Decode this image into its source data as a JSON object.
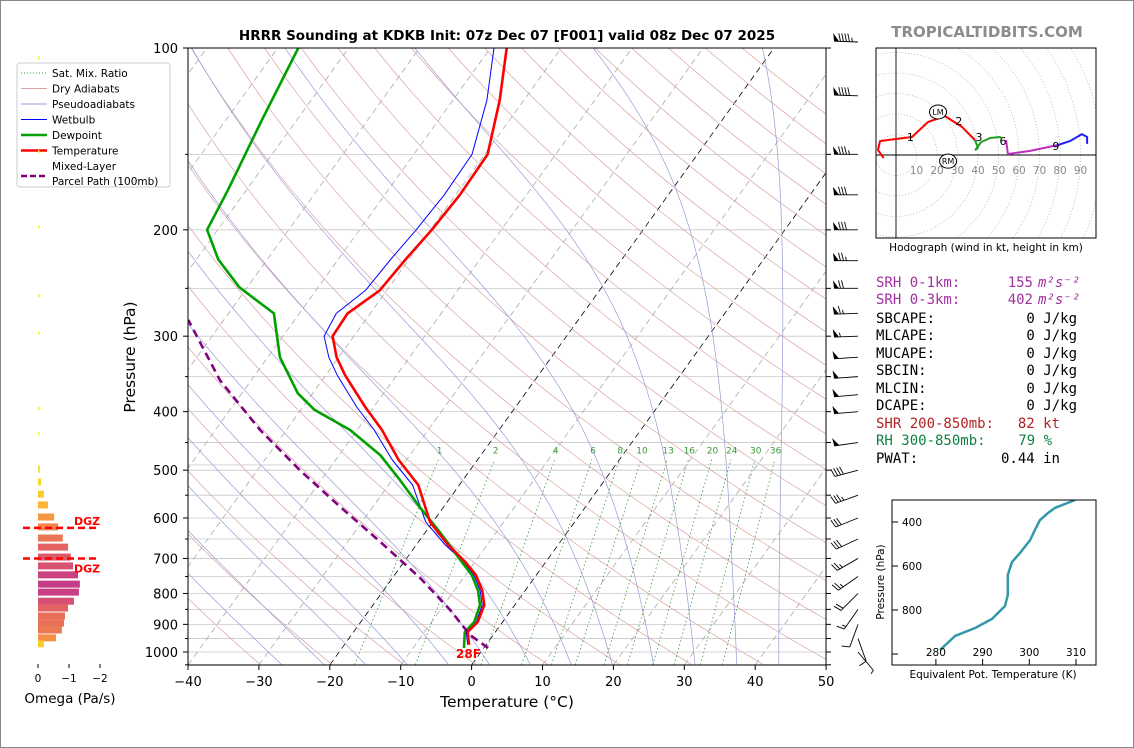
{
  "title": "HRRR Sounding at KDKB Init: 07z Dec 07 [F001] valid 08z Dec 07 2025",
  "watermark": "TROPICALTIDBITS.COM",
  "colors": {
    "temperature": "#ff0000",
    "dewpoint": "#00a000",
    "wetbulb": "#0000ff",
    "parcel": "#800080",
    "dry_adiabat": "#d9a3a3",
    "moist_adiabat": "#9a9ad8",
    "mixing_ratio": "#3a9a3a",
    "srh": "#a030a0",
    "shear": "#b22222",
    "rh": "#108040"
  },
  "legend": [
    {
      "label": "Sat. Mix. Ratio",
      "style": "mix"
    },
    {
      "label": "Dry Adiabats",
      "style": "dry"
    },
    {
      "label": "Pseudoadiabats",
      "style": "moist"
    },
    {
      "label": "Wetbulb",
      "style": "wet"
    },
    {
      "label": "Dewpoint",
      "style": "dew"
    },
    {
      "label": "Temperature",
      "style": "temp"
    },
    {
      "label": "Mixed-Layer",
      "label2": "Parcel Path (100mb)",
      "style": "parcel"
    }
  ],
  "chart_data": [
    {
      "type": "line",
      "name": "skew-t",
      "xlabel": "Temperature (°C)",
      "ylabel": "Pressure (hPa)",
      "xlim": [
        -40,
        50
      ],
      "ylim": [
        1050,
        100
      ],
      "x_ticks": [
        -40,
        -30,
        -20,
        -10,
        0,
        10,
        20,
        30,
        40,
        50
      ],
      "pressure_ticks": [
        100,
        200,
        300,
        400,
        500,
        600,
        700,
        800,
        900,
        1000
      ],
      "surface_label": "28F",
      "mixing_ratio_labels": [
        1,
        2,
        4,
        6,
        8,
        10,
        13,
        16,
        20,
        24,
        30,
        36
      ],
      "series": [
        {
          "name": "Temperature",
          "points": [
            [
              973,
              -2.4
            ],
            [
              927,
              -3.9
            ],
            [
              892,
              -3.5
            ],
            [
              836,
              -4.3
            ],
            [
              790,
              -6.1
            ],
            [
              746,
              -8.5
            ],
            [
              710,
              -11.3
            ],
            [
              665,
              -15.5
            ],
            [
              609,
              -20.4
            ],
            [
              529,
              -25.8
            ],
            [
              481,
              -31.1
            ],
            [
              429,
              -36.5
            ],
            [
              393,
              -41.2
            ],
            [
              348,
              -47.3
            ],
            [
              325,
              -50.3
            ],
            [
              300,
              -53.0
            ],
            [
              275,
              -53.2
            ],
            [
              252,
              -51.0
            ],
            [
              224,
              -50.5
            ],
            [
              200,
              -49.8
            ],
            [
              175,
              -49.4
            ],
            [
              150,
              -49.6
            ],
            [
              122,
              -53.4
            ],
            [
              100,
              -57.7
            ]
          ]
        },
        {
          "name": "Dewpoint",
          "points": [
            [
              985,
              -2.8
            ],
            [
              927,
              -4.3
            ],
            [
              892,
              -4.0
            ],
            [
              836,
              -4.9
            ],
            [
              790,
              -6.7
            ],
            [
              746,
              -9.1
            ],
            [
              710,
              -11.8
            ],
            [
              633,
              -18.0
            ],
            [
              577,
              -23.2
            ],
            [
              519,
              -28.9
            ],
            [
              472,
              -34.2
            ],
            [
              429,
              -41.0
            ],
            [
              397,
              -48.1
            ],
            [
              373,
              -52.1
            ],
            [
              325,
              -58.3
            ],
            [
              275,
              -63.6
            ],
            [
              249,
              -71.1
            ],
            [
              224,
              -76.9
            ],
            [
              200,
              -81.5
            ],
            [
              172,
              -82.6
            ],
            [
              132,
              -84.9
            ],
            [
              100,
              -87.1
            ]
          ]
        },
        {
          "name": "Wetbulb",
          "points": [
            [
              973,
              -2.6
            ],
            [
              927,
              -4.1
            ],
            [
              892,
              -3.7
            ],
            [
              836,
              -4.6
            ],
            [
              790,
              -6.4
            ],
            [
              746,
              -8.8
            ],
            [
              710,
              -11.5
            ],
            [
              665,
              -15.9
            ],
            [
              609,
              -21.0
            ],
            [
              529,
              -26.6
            ],
            [
              481,
              -32.0
            ],
            [
              429,
              -37.6
            ],
            [
              393,
              -42.4
            ],
            [
              348,
              -48.4
            ],
            [
              325,
              -51.4
            ],
            [
              300,
              -54.2
            ],
            [
              275,
              -54.8
            ],
            [
              252,
              -53.0
            ],
            [
              224,
              -52.6
            ],
            [
              200,
              -52.0
            ],
            [
              175,
              -51.6
            ],
            [
              150,
              -51.8
            ],
            [
              122,
              -55.2
            ],
            [
              100,
              -59.5
            ]
          ]
        },
        {
          "name": "Mixed-Layer Parcel Path (100mb)",
          "points": [
            [
              985,
              0.6
            ],
            [
              937,
              -3.3
            ],
            [
              852,
              -8.6
            ],
            [
              754,
              -16.1
            ],
            [
              657,
              -25.4
            ],
            [
              575,
              -34.6
            ],
            [
              500,
              -44.0
            ],
            [
              429,
              -53.7
            ],
            [
              355,
              -64.4
            ],
            [
              282,
              -75.0
            ]
          ]
        }
      ],
      "wind_barbs": [
        [
          100,
          95,
          272
        ],
        [
          120,
          90,
          272
        ],
        [
          150,
          85,
          270
        ],
        [
          175,
          80,
          270
        ],
        [
          200,
          80,
          270
        ],
        [
          225,
          75,
          270
        ],
        [
          250,
          70,
          270
        ],
        [
          275,
          65,
          268
        ],
        [
          300,
          55,
          268
        ],
        [
          325,
          50,
          266
        ],
        [
          350,
          50,
          266
        ],
        [
          375,
          50,
          265
        ],
        [
          400,
          50,
          265
        ],
        [
          450,
          50,
          262
        ],
        [
          500,
          40,
          255
        ],
        [
          550,
          35,
          250
        ],
        [
          600,
          30,
          248
        ],
        [
          650,
          30,
          245
        ],
        [
          700,
          25,
          240
        ],
        [
          750,
          25,
          235
        ],
        [
          800,
          20,
          225
        ],
        [
          850,
          15,
          215
        ],
        [
          900,
          10,
          200
        ],
        [
          950,
          8,
          160
        ],
        [
          1000,
          5,
          140
        ]
      ]
    },
    {
      "type": "bar",
      "name": "omega",
      "xlabel": "Omega (Pa/s)",
      "x_ticks": [
        "0",
        "−1",
        "−2"
      ],
      "x_tick_values": [
        0,
        -1,
        -2
      ],
      "dgz_label": "DGZ",
      "dgz_pressures": [
        623,
        700
      ],
      "bars": [
        [
          105,
          0.01
        ],
        [
          150,
          0.01
        ],
        [
          200,
          0.01
        ],
        [
          260,
          0.01
        ],
        [
          300,
          0.01
        ],
        [
          400,
          0.01
        ],
        [
          440,
          0.01
        ],
        [
          500,
          -0.06
        ],
        [
          525,
          -0.1
        ],
        [
          550,
          -0.19
        ],
        [
          573,
          -0.32
        ],
        [
          600,
          -0.52
        ],
        [
          623,
          -0.65
        ],
        [
          650,
          -0.8
        ],
        [
          673,
          -0.97
        ],
        [
          699,
          -1.06
        ],
        [
          723,
          -1.13
        ],
        [
          748,
          -1.29
        ],
        [
          775,
          -1.35
        ],
        [
          799,
          -1.32
        ],
        [
          827,
          -1.16
        ],
        [
          849,
          -0.97
        ],
        [
          875,
          -0.87
        ],
        [
          899,
          -0.84
        ],
        [
          923,
          -0.77
        ],
        [
          951,
          -0.58
        ],
        [
          973,
          -0.19
        ]
      ]
    },
    {
      "type": "line",
      "name": "hodograph",
      "caption": "Hodograph (wind in kt, height in km)",
      "ring_labels": [
        10,
        20,
        30,
        40,
        50,
        60,
        70,
        80,
        90
      ],
      "segments": [
        {
          "color": "#ff0000",
          "points": [
            [
              -6,
              -1.5
            ],
            [
              -8.8,
              2.4
            ],
            [
              -7.8,
              6.8
            ],
            [
              0,
              7.8
            ],
            [
              7.8,
              8.8
            ],
            [
              15.6,
              16.1
            ],
            [
              23.9,
              19
            ],
            [
              32.2,
              13.7
            ],
            [
              38.5,
              7.3
            ]
          ]
        },
        {
          "color": "#20a020",
          "points": [
            [
              38.5,
              7.3
            ],
            [
              40,
              3.5
            ],
            [
              38.8,
              2.6
            ],
            [
              41.5,
              6.3
            ],
            [
              45.9,
              8.3
            ],
            [
              50.7,
              8.8
            ],
            [
              51.5,
              8.3
            ]
          ]
        },
        {
          "color": "#c030c0",
          "points": [
            [
              53.7,
              7.3
            ],
            [
              54.6,
              0.5
            ],
            [
              65.4,
              2
            ],
            [
              79,
              4.9
            ]
          ]
        },
        {
          "color": "#2020ff",
          "points": [
            [
              79,
              4.9
            ],
            [
              84.9,
              6.8
            ],
            [
              90.7,
              10.2
            ],
            [
              93.2,
              8.8
            ],
            [
              93.2,
              5.4
            ]
          ]
        }
      ],
      "height_labels": [
        {
          "t": "1",
          "u": 7,
          "v": 8.8
        },
        {
          "t": "2",
          "u": 30.7,
          "v": 16.6
        },
        {
          "t": "3",
          "u": 40.5,
          "v": 8.8
        },
        {
          "t": "6",
          "u": 52.2,
          "v": 6.8
        },
        {
          "t": "9",
          "u": 78,
          "v": 4.4
        }
      ],
      "storm_motion": [
        {
          "t": "LM",
          "u": 20.5,
          "v": 21
        },
        {
          "t": "RM",
          "u": 25.4,
          "v": -3
        }
      ]
    },
    {
      "type": "line",
      "name": "theta-e",
      "xlabel": "Equivalent Pot. Temperature (K)",
      "ylabel": "Pressure (hPa)",
      "x_ticks": [
        280,
        290,
        300,
        310
      ],
      "y_ticks": [
        400,
        600,
        800
      ],
      "xlim": [
        270.6,
        314.3
      ],
      "ylim": [
        1050,
        300
      ],
      "points": [
        [
          982,
          280.9
        ],
        [
          918,
          284.1
        ],
        [
          882,
          288.4
        ],
        [
          841,
          292.0
        ],
        [
          782,
          294.8
        ],
        [
          732,
          295.4
        ],
        [
          641,
          295.4
        ],
        [
          582,
          296.3
        ],
        [
          541,
          298.0
        ],
        [
          482,
          300.2
        ],
        [
          436,
          301.2
        ],
        [
          391,
          302.3
        ],
        [
          359,
          304.0
        ],
        [
          336,
          305.5
        ],
        [
          300,
          309.8
        ]
      ]
    }
  ],
  "stats": [
    {
      "label": "SRH 0-1km:",
      "value": "155",
      "unit": "m²s⁻²",
      "color": "srh"
    },
    {
      "label": "SRH 0-3km:",
      "value": "402",
      "unit": "m²s⁻²",
      "color": "srh"
    },
    {
      "label": "SBCAPE:",
      "value": "0 J/kg",
      "color": "black"
    },
    {
      "label": "MLCAPE:",
      "value": "0 J/kg",
      "color": "black"
    },
    {
      "label": "MUCAPE:",
      "value": "0 J/kg",
      "color": "black"
    },
    {
      "label": "SBCIN:",
      "value": "0 J/kg",
      "color": "black"
    },
    {
      "label": "MLCIN:",
      "value": "0 J/kg",
      "color": "black"
    },
    {
      "label": "DCAPE:",
      "value": "0 J/kg",
      "color": "black"
    },
    {
      "label": "SHR 200-850mb:",
      "value": "82 kt",
      "color": "shear"
    },
    {
      "label": "RH 300-850mb:",
      "value": "79 %",
      "color": "rh"
    },
    {
      "label": "PWAT:",
      "value": "0.44 in",
      "color": "black"
    }
  ]
}
